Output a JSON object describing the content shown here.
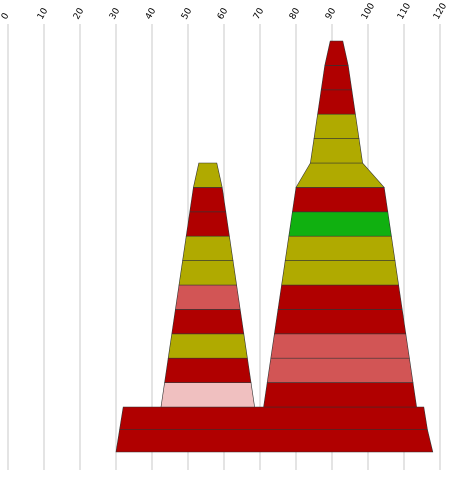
{
  "chart_data": {
    "type": "bar",
    "orientation": "horizontal-stacked-cones",
    "title": "",
    "xlabel": "",
    "ylabel": "",
    "xlim": [
      0,
      120
    ],
    "x_ticks": [
      "0",
      "10",
      "20",
      "30",
      "40",
      "50",
      "60",
      "70",
      "80",
      "90",
      "100",
      "110",
      "120"
    ],
    "grid": true,
    "colors": {
      "red": "#b00000",
      "olive": "#b0aa00",
      "salmon": "#d25555",
      "pink": "#f0c0c0",
      "green": "#10b010"
    },
    "bottom_band": [
      {
        "xmin": 30,
        "xmax": 118,
        "color": "red"
      },
      {
        "xmin": 31,
        "xmax": 116.5,
        "color": "red"
      }
    ],
    "cones": [
      {
        "name": "",
        "levels": [
          {
            "xmin": 42.5,
            "xmax": 68.5,
            "color": "pink"
          },
          {
            "xmin": 43.5,
            "xmax": 67.5,
            "color": "red"
          },
          {
            "xmin": 44.5,
            "xmax": 66.5,
            "color": "olive"
          },
          {
            "xmin": 45.5,
            "xmax": 65.5,
            "color": "red"
          },
          {
            "xmin": 46.5,
            "xmax": 64.5,
            "color": "salmon"
          },
          {
            "xmin": 47.5,
            "xmax": 63.5,
            "color": "olive"
          },
          {
            "xmin": 48.5,
            "xmax": 62.5,
            "color": "olive"
          },
          {
            "xmin": 49.5,
            "xmax": 61.5,
            "color": "red"
          },
          {
            "xmin": 50.5,
            "xmax": 60.5,
            "color": "red"
          },
          {
            "xmin": 51.5,
            "xmax": 59.5,
            "color": "olive"
          }
        ]
      },
      {
        "name": "",
        "levels": [
          {
            "xmin": 71,
            "xmax": 113.5,
            "color": "red"
          },
          {
            "xmin": 72,
            "xmax": 112.5,
            "color": "salmon"
          },
          {
            "xmin": 73,
            "xmax": 111.5,
            "color": "salmon"
          },
          {
            "xmin": 74,
            "xmax": 110.5,
            "color": "red"
          },
          {
            "xmin": 75,
            "xmax": 109.5,
            "color": "red"
          },
          {
            "xmin": 76,
            "xmax": 108.5,
            "color": "olive"
          },
          {
            "xmin": 77,
            "xmax": 107.5,
            "color": "olive"
          },
          {
            "xmin": 78,
            "xmax": 106.5,
            "color": "green"
          },
          {
            "xmin": 79,
            "xmax": 105.5,
            "color": "red"
          },
          {
            "xmin": 80,
            "xmax": 104.5,
            "color": "olive"
          },
          {
            "xmin": 84,
            "xmax": 98.5,
            "color": "olive"
          },
          {
            "xmin": 85,
            "xmax": 97.5,
            "color": "olive"
          },
          {
            "xmin": 86,
            "xmax": 96.5,
            "color": "red"
          },
          {
            "xmin": 87,
            "xmax": 95.5,
            "color": "red"
          },
          {
            "xmin": 88,
            "xmax": 94.5,
            "color": "red"
          }
        ]
      }
    ]
  }
}
